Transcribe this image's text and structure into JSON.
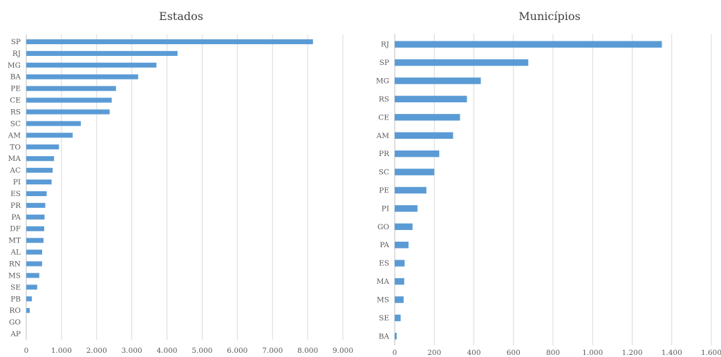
{
  "chart_data": [
    {
      "type": "bar",
      "orientation": "horizontal",
      "title": "Estados",
      "categories": [
        "SP",
        "RJ",
        "MG",
        "BA",
        "PE",
        "CE",
        "RS",
        "SC",
        "AM",
        "TO",
        "MA",
        "AC",
        "PI",
        "ES",
        "PR",
        "PA",
        "DF",
        "MT",
        "AL",
        "RN",
        "MS",
        "SE",
        "PB",
        "RO",
        "GO",
        "AP"
      ],
      "values": [
        8150,
        4300,
        3700,
        3180,
        2550,
        2430,
        2370,
        1550,
        1320,
        930,
        790,
        750,
        720,
        580,
        540,
        520,
        510,
        490,
        450,
        450,
        370,
        310,
        160,
        100,
        0,
        0
      ],
      "xlim": [
        0,
        9000
      ],
      "xticks": [
        "0",
        "1.000",
        "2.000",
        "3.000",
        "4.000",
        "5.000",
        "6.000",
        "7.000",
        "8.000",
        "9.000"
      ],
      "grid": true,
      "bar_color": "#5B9BD5"
    },
    {
      "type": "bar",
      "orientation": "horizontal",
      "title": "Municípios",
      "categories": [
        "RJ",
        "SP",
        "MG",
        "RS",
        "CE",
        "AM",
        "PR",
        "SC",
        "PE",
        "PI",
        "GO",
        "PA",
        "ES",
        "MA",
        "MS",
        "SE",
        "BA"
      ],
      "values": [
        1350,
        675,
        435,
        365,
        330,
        295,
        225,
        200,
        160,
        115,
        90,
        70,
        50,
        48,
        45,
        30,
        10
      ],
      "xlim": [
        0,
        1600
      ],
      "xticks": [
        "0",
        "200",
        "400",
        "600",
        "800",
        "1.000",
        "1.200",
        "1.400",
        "1.600"
      ],
      "grid": true,
      "bar_color": "#5B9BD5"
    }
  ]
}
